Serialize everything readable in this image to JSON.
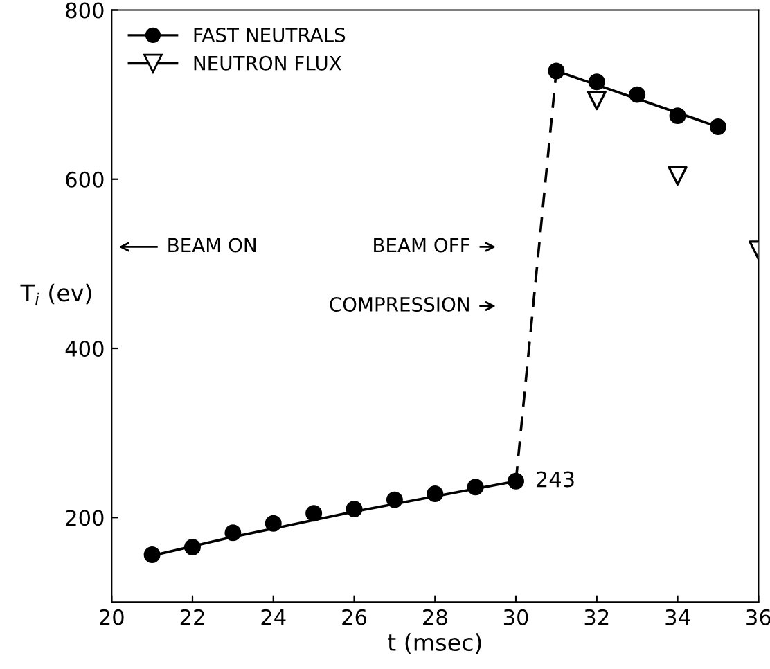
{
  "chart_data": {
    "type": "scatter",
    "xlabel": "t (msec)",
    "ylabel": "T$_{i}$ (ev)",
    "xlim": [
      20,
      36
    ],
    "xticks": [
      20,
      22,
      24,
      26,
      28,
      30,
      32,
      34,
      36
    ],
    "ylim": [
      100,
      800
    ],
    "yticks": [
      200,
      400,
      600,
      800
    ],
    "grid": false,
    "legend": "top left",
    "series": [
      {
        "type": "line",
        "color": "#000000",
        "marker": "none",
        "line_style": "solid",
        "x": [
          21,
          22,
          23,
          24,
          25,
          26,
          27,
          28,
          29,
          30
        ],
        "values": [
          155,
          166,
          177,
          187,
          197,
          207,
          216,
          225,
          234,
          243
        ]
      },
      {
        "type": "line",
        "color": "#000000",
        "marker": "none",
        "line_style": "dashed",
        "x": [
          30,
          31
        ],
        "values": [
          243,
          728
        ]
      },
      {
        "type": "line",
        "color": "#000000",
        "marker": "none",
        "line_style": "solid",
        "x": [
          31,
          35
        ],
        "values": [
          728,
          662
        ]
      },
      {
        "name": "FAST NEUTRALS",
        "color": "#000000",
        "marker": "circle",
        "x": [
          21,
          22,
          23,
          24,
          25,
          26,
          27,
          28,
          29,
          30,
          31,
          32,
          33,
          34,
          35
        ],
        "values": [
          156,
          165,
          182,
          193,
          205,
          210,
          221,
          228,
          236,
          243,
          728,
          715,
          700,
          675,
          662
        ]
      },
      {
        "name": "NEUTRON FLUX",
        "color": "#000000",
        "marker": "triangle",
        "x": [
          32,
          34,
          36
        ],
        "values": [
          693,
          604,
          516
        ]
      }
    ],
    "annotations": [
      "BEAM ON",
      "BEAM OFF",
      "COMPRESSION",
      {
        "text": "243",
        "x": 30,
        "y": 243
      }
    ]
  }
}
